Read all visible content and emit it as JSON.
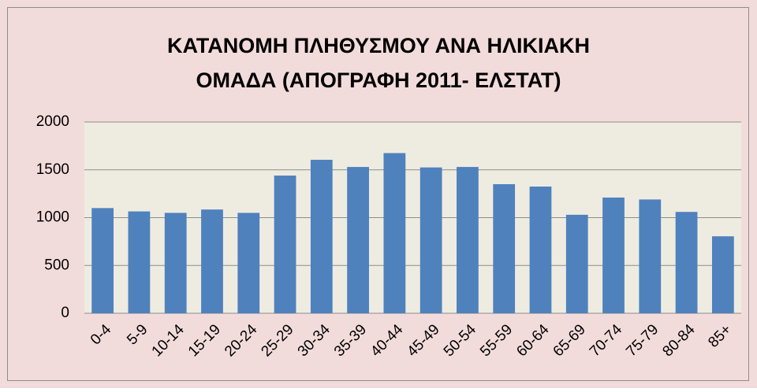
{
  "chart_data": {
    "type": "bar",
    "title": [
      "ΚΑΤΑΝΟΜΗ ΠΛΗΘΥΣΜΟΥ ΑΝΑ ΗΛΙΚΙΑΚΗ",
      "ΟΜΑΔΑ (ΑΠΟΓΡΑΦΗ 2011- ΕΛΣΤΑΤ)"
    ],
    "categories": [
      "0-4",
      "5-9",
      "10-14",
      "15-19",
      "20-24",
      "25-29",
      "30-34",
      "35-39",
      "40-44",
      "45-49",
      "50-54",
      "55-59",
      "60-64",
      "65-69",
      "70-74",
      "75-79",
      "80-84",
      "85+"
    ],
    "values": [
      1100,
      1065,
      1050,
      1085,
      1050,
      1440,
      1605,
      1530,
      1675,
      1525,
      1530,
      1350,
      1325,
      1030,
      1210,
      1190,
      1060,
      805
    ],
    "color": "#4f81bd",
    "ylim": [
      0,
      2000
    ],
    "yticks": [
      0,
      500,
      1000,
      1500,
      2000
    ],
    "grid": true
  }
}
